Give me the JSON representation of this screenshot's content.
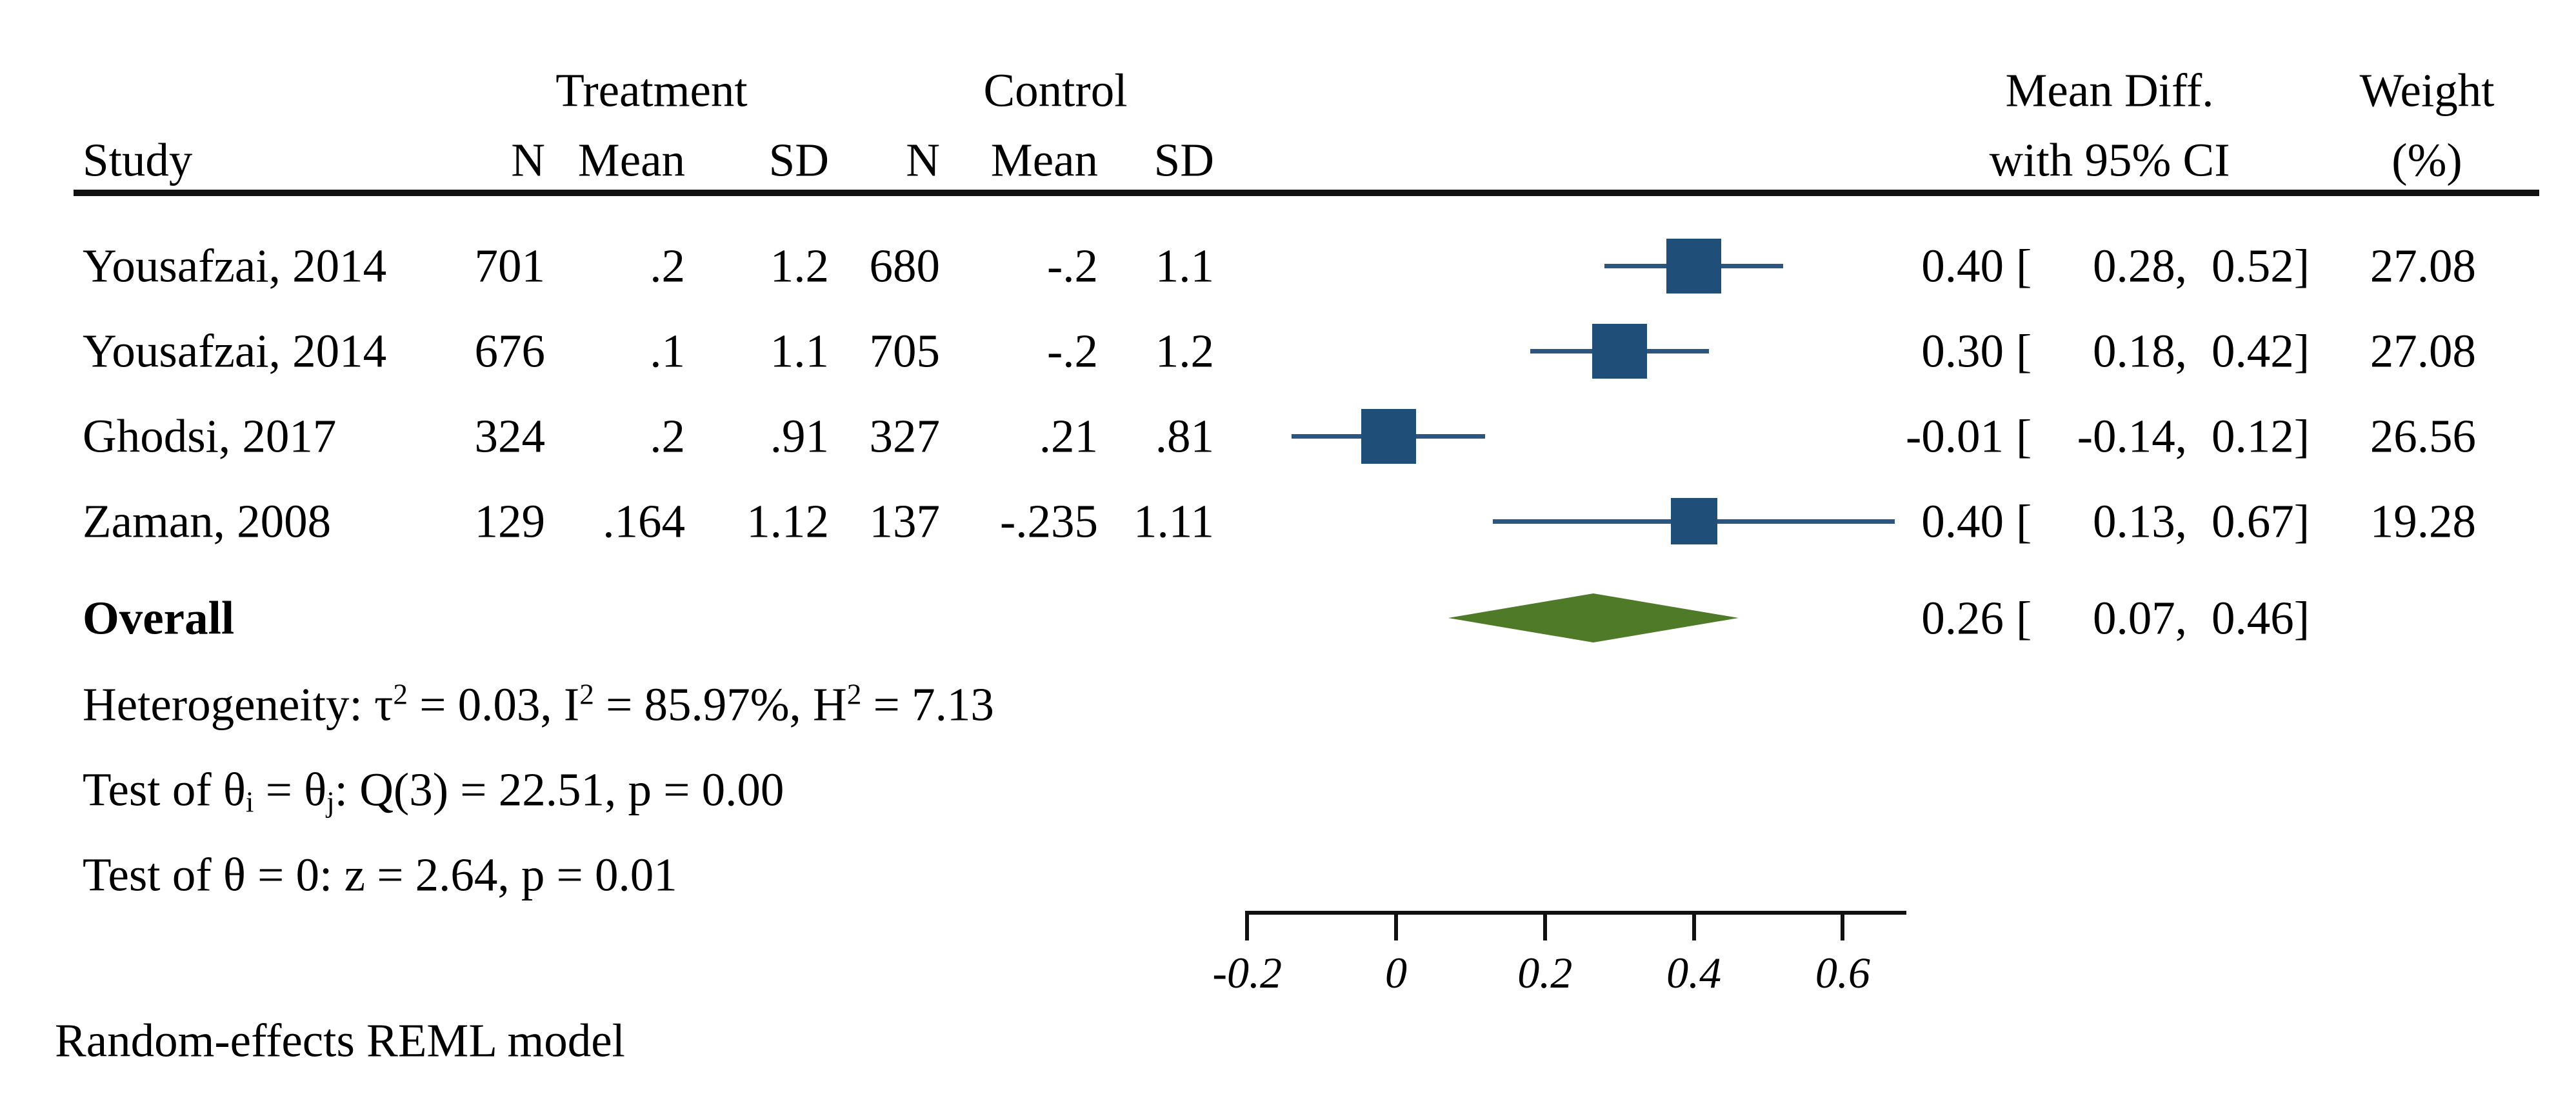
{
  "header": {
    "study": "Study",
    "treatment_group": "Treatment",
    "control_group": "Control",
    "col_n": "N",
    "col_mean": "Mean",
    "col_sd": "SD",
    "effect_line1": "Mean Diff.",
    "effect_line2": "with 95% CI",
    "weight_line1": "Weight",
    "weight_line2": "(%)"
  },
  "overall_label": "Overall",
  "stat_lines": {
    "heterogeneity": [
      {
        "text": "Heterogeneity: τ"
      },
      {
        "text": "2",
        "style": "sup"
      },
      {
        "text": " = 0.03, I"
      },
      {
        "text": "2",
        "style": "sup"
      },
      {
        "text": " = 85.97%, H"
      },
      {
        "text": "2",
        "style": "sup"
      },
      {
        "text": " = 7.13"
      }
    ],
    "test_q": [
      {
        "text": "Test of θ"
      },
      {
        "text": "i",
        "style": "sub"
      },
      {
        "text": " = θ"
      },
      {
        "text": "j",
        "style": "sub"
      },
      {
        "text": ": Q(3) = 22.51, p = 0.00"
      }
    ],
    "test_z": [
      {
        "text": "Test of θ = 0: z = 2.64, p = 0.01"
      }
    ]
  },
  "footer": {
    "model_note": "Random-effects REML model"
  },
  "colors": {
    "square": "#1f4e79",
    "ci": "#2a567f",
    "diamond": "#4f7a28",
    "text": "#000000",
    "rule": "#111111"
  },
  "chart_data": {
    "type": "forest",
    "title": "",
    "effect_measure": "Mean Diff. with 95% CI",
    "model": "Random-effects REML model",
    "x_axis": {
      "tick_labels": [
        "-0.2",
        "0",
        "0.2",
        "0.4",
        "0.6"
      ],
      "tick_values": [
        -0.2,
        0,
        0.2,
        0.4,
        0.6
      ],
      "range": [
        -0.2,
        0.69
      ],
      "grid": false
    },
    "studies": [
      {
        "study": "Yousafzai, 2014",
        "treatment": {
          "n": "701",
          "mean": ".2",
          "sd": "1.2"
        },
        "control": {
          "n": "680",
          "mean": "-.2",
          "sd": "1.1"
        },
        "effect": 0.4,
        "ci_low": 0.28,
        "ci_high": 0.52,
        "weight": 27.08,
        "display": {
          "effect": "0.40",
          "ci_low": "0.28",
          "ci_high": "0.52",
          "weight": "27.08"
        }
      },
      {
        "study": "Yousafzai, 2014",
        "treatment": {
          "n": "676",
          "mean": ".1",
          "sd": "1.1"
        },
        "control": {
          "n": "705",
          "mean": "-.2",
          "sd": "1.2"
        },
        "effect": 0.3,
        "ci_low": 0.18,
        "ci_high": 0.42,
        "weight": 27.08,
        "display": {
          "effect": "0.30",
          "ci_low": "0.18",
          "ci_high": "0.42",
          "weight": "27.08"
        }
      },
      {
        "study": "Ghodsi, 2017",
        "treatment": {
          "n": "324",
          "mean": ".2",
          "sd": ".91"
        },
        "control": {
          "n": "327",
          "mean": ".21",
          "sd": ".81"
        },
        "effect": -0.01,
        "ci_low": -0.14,
        "ci_high": 0.12,
        "weight": 26.56,
        "display": {
          "effect": "-0.01",
          "ci_low": "-0.14",
          "ci_high": "0.12",
          "weight": "26.56"
        }
      },
      {
        "study": "Zaman, 2008",
        "treatment": {
          "n": "129",
          "mean": ".164",
          "sd": "1.12"
        },
        "control": {
          "n": "137",
          "mean": "-.235",
          "sd": "1.11"
        },
        "effect": 0.4,
        "ci_low": 0.13,
        "ci_high": 0.67,
        "weight": 19.28,
        "display": {
          "effect": "0.40",
          "ci_low": "0.13",
          "ci_high": "0.67",
          "weight": "19.28"
        }
      }
    ],
    "overall": {
      "label": "Overall",
      "effect": 0.26,
      "ci_low": 0.07,
      "ci_high": 0.46,
      "display": {
        "effect": "0.26",
        "ci_low": "0.07",
        "ci_high": "0.46"
      }
    },
    "heterogeneity": {
      "tau2": "0.03",
      "I2": "85.97%",
      "H2": "7.13"
    },
    "test_q": {
      "df": "3",
      "Q": "22.51",
      "p": "0.00"
    },
    "test_z": {
      "z": "2.64",
      "p": "0.01"
    }
  }
}
